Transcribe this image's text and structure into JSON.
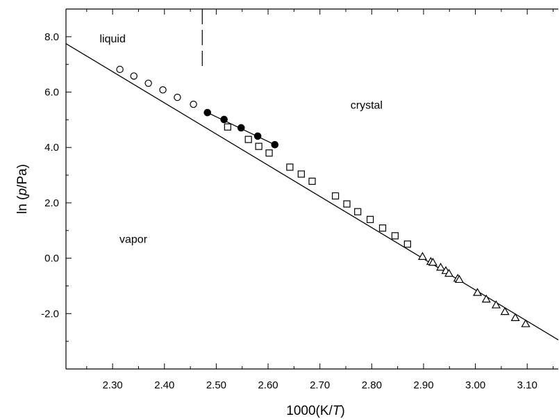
{
  "chart_data": {
    "type": "scatter",
    "xlabel_parts": [
      "1000(K/",
      "T",
      ")"
    ],
    "ylabel_parts": [
      "ln (",
      "p",
      "/Pa)"
    ],
    "xlim": [
      2.21,
      3.16
    ],
    "ylim": [
      -4.0,
      9.0
    ],
    "x_ticks": [
      2.3,
      2.4,
      2.5,
      2.6,
      2.7,
      2.8,
      2.9,
      3.0,
      3.1
    ],
    "x_tick_labels": [
      "2.30",
      "2.40",
      "2.50",
      "2.60",
      "2.70",
      "2.80",
      "2.90",
      "3.00",
      "3.10"
    ],
    "y_ticks": [
      -2.0,
      0.0,
      2.0,
      4.0,
      6.0,
      8.0
    ],
    "y_tick_labels": [
      "-2.0",
      "0.0",
      "2.0",
      "4.0",
      "6.0",
      "8.0"
    ],
    "x_minor_step": 0.05,
    "y_minor_step": 1.0,
    "grid": false,
    "legend": "none",
    "annotations": [
      {
        "text": "liquid",
        "x": 2.3,
        "y": 7.8
      },
      {
        "text": "crystal",
        "x": 2.79,
        "y": 5.4
      },
      {
        "text": "vapor",
        "x": 2.34,
        "y": 0.55
      }
    ],
    "phase_boundary_x": 2.473,
    "phase_boundary_y": [
      6.8,
      9.0
    ],
    "series": [
      {
        "marker": "open-circle",
        "x": [
          2.314,
          2.341,
          2.369,
          2.397,
          2.425,
          2.456
        ],
        "y": [
          6.82,
          6.58,
          6.32,
          6.08,
          5.81,
          5.56
        ]
      },
      {
        "marker": "filled-circle",
        "x": [
          2.483,
          2.515,
          2.548,
          2.58,
          2.613
        ],
        "y": [
          5.26,
          5.01,
          4.71,
          4.41,
          4.1
        ]
      },
      {
        "marker": "open-square",
        "x": [
          2.522,
          2.562,
          2.582,
          2.602,
          2.642,
          2.664,
          2.685,
          2.73,
          2.752,
          2.773,
          2.797,
          2.821,
          2.845,
          2.869
        ],
        "y": [
          4.74,
          4.29,
          4.04,
          3.8,
          3.29,
          3.04,
          2.78,
          2.25,
          1.96,
          1.68,
          1.4,
          1.09,
          0.81,
          0.51
        ]
      },
      {
        "marker": "open-triangle",
        "x": [
          2.898,
          2.914,
          2.918,
          2.933,
          2.943,
          2.949,
          2.966,
          2.969,
          3.004,
          3.021,
          3.04,
          3.057,
          3.077,
          3.097
        ],
        "y": [
          0.06,
          -0.12,
          -0.15,
          -0.33,
          -0.45,
          -0.55,
          -0.73,
          -0.77,
          -1.24,
          -1.48,
          -1.69,
          -1.93,
          -2.15,
          -2.37
        ]
      }
    ],
    "fit_lines": [
      {
        "x": [
          2.21,
          3.16
        ],
        "y": [
          7.75,
          -2.95
        ]
      },
      {
        "x": [
          2.483,
          2.613
        ],
        "y": [
          5.26,
          4.1
        ]
      }
    ]
  }
}
